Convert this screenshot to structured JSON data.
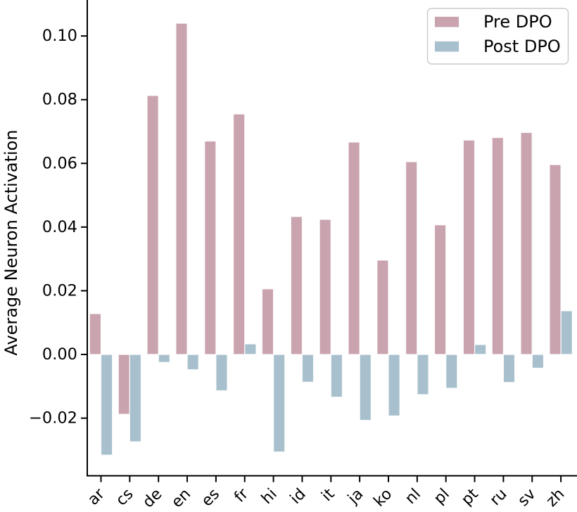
{
  "chart_data": {
    "type": "bar",
    "title": "",
    "xlabel": "",
    "ylabel": "Average Neuron Activation",
    "categories": [
      "ar",
      "cs",
      "de",
      "en",
      "es",
      "fr",
      "hi",
      "id",
      "it",
      "ja",
      "ko",
      "nl",
      "pl",
      "pt",
      "ru",
      "sv",
      "zh"
    ],
    "series": [
      {
        "name": "Pre DPO",
        "color": "#c9a3ad",
        "values": [
          0.0128,
          -0.0188,
          0.0813,
          0.104,
          0.067,
          0.0755,
          0.0206,
          0.0433,
          0.0424,
          0.0667,
          0.0296,
          0.0605,
          0.0407,
          0.0673,
          0.0681,
          0.0697,
          0.0596
        ]
      },
      {
        "name": "Post DPO",
        "color": "#a8c0cd",
        "values": [
          -0.0316,
          -0.0274,
          -0.0025,
          -0.0048,
          -0.0114,
          0.0033,
          -0.0306,
          -0.0087,
          -0.0134,
          -0.0207,
          -0.0193,
          -0.0126,
          -0.0106,
          0.0031,
          -0.0088,
          -0.0043,
          0.0137
        ]
      }
    ],
    "yticks": [
      0.1,
      0.08,
      0.06,
      0.04,
      0.02,
      0.0,
      -0.02
    ],
    "ylim": [
      -0.0381,
      0.1113
    ],
    "grid": false,
    "legend": {
      "position": "upper right",
      "entries": [
        "Pre DPO",
        "Post DPO"
      ],
      "background": "#ffffff",
      "border_color": "#cccccc"
    },
    "axis_color": "#000000",
    "text_color": "#000000"
  }
}
